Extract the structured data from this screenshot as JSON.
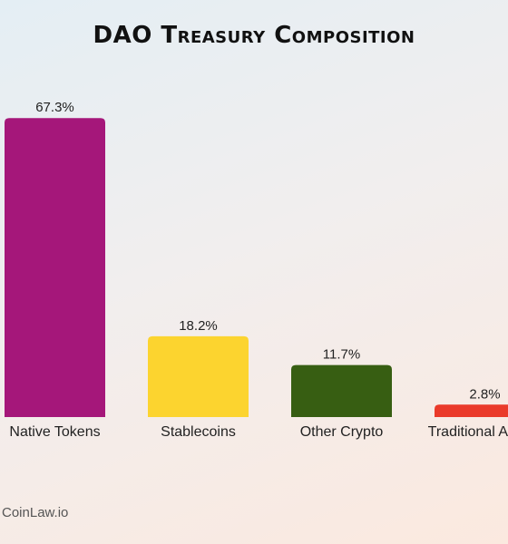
{
  "chart_data": {
    "type": "bar",
    "title": "DAO Treasury Composition",
    "categories": [
      "Native Tokens",
      "Stablecoins",
      "Other Crypto",
      "Traditional Assets"
    ],
    "values": [
      67.3,
      18.2,
      11.7,
      2.8
    ],
    "value_labels": [
      "67.3%",
      "18.2%",
      "11.7%",
      "2.8%"
    ],
    "colors": [
      "#a5177a",
      "#fcd42f",
      "#375e12",
      "#ea3a2a"
    ],
    "ylim": [
      0,
      70
    ],
    "grid": false,
    "legend": "none"
  },
  "watermark": "CoinLaw.io"
}
